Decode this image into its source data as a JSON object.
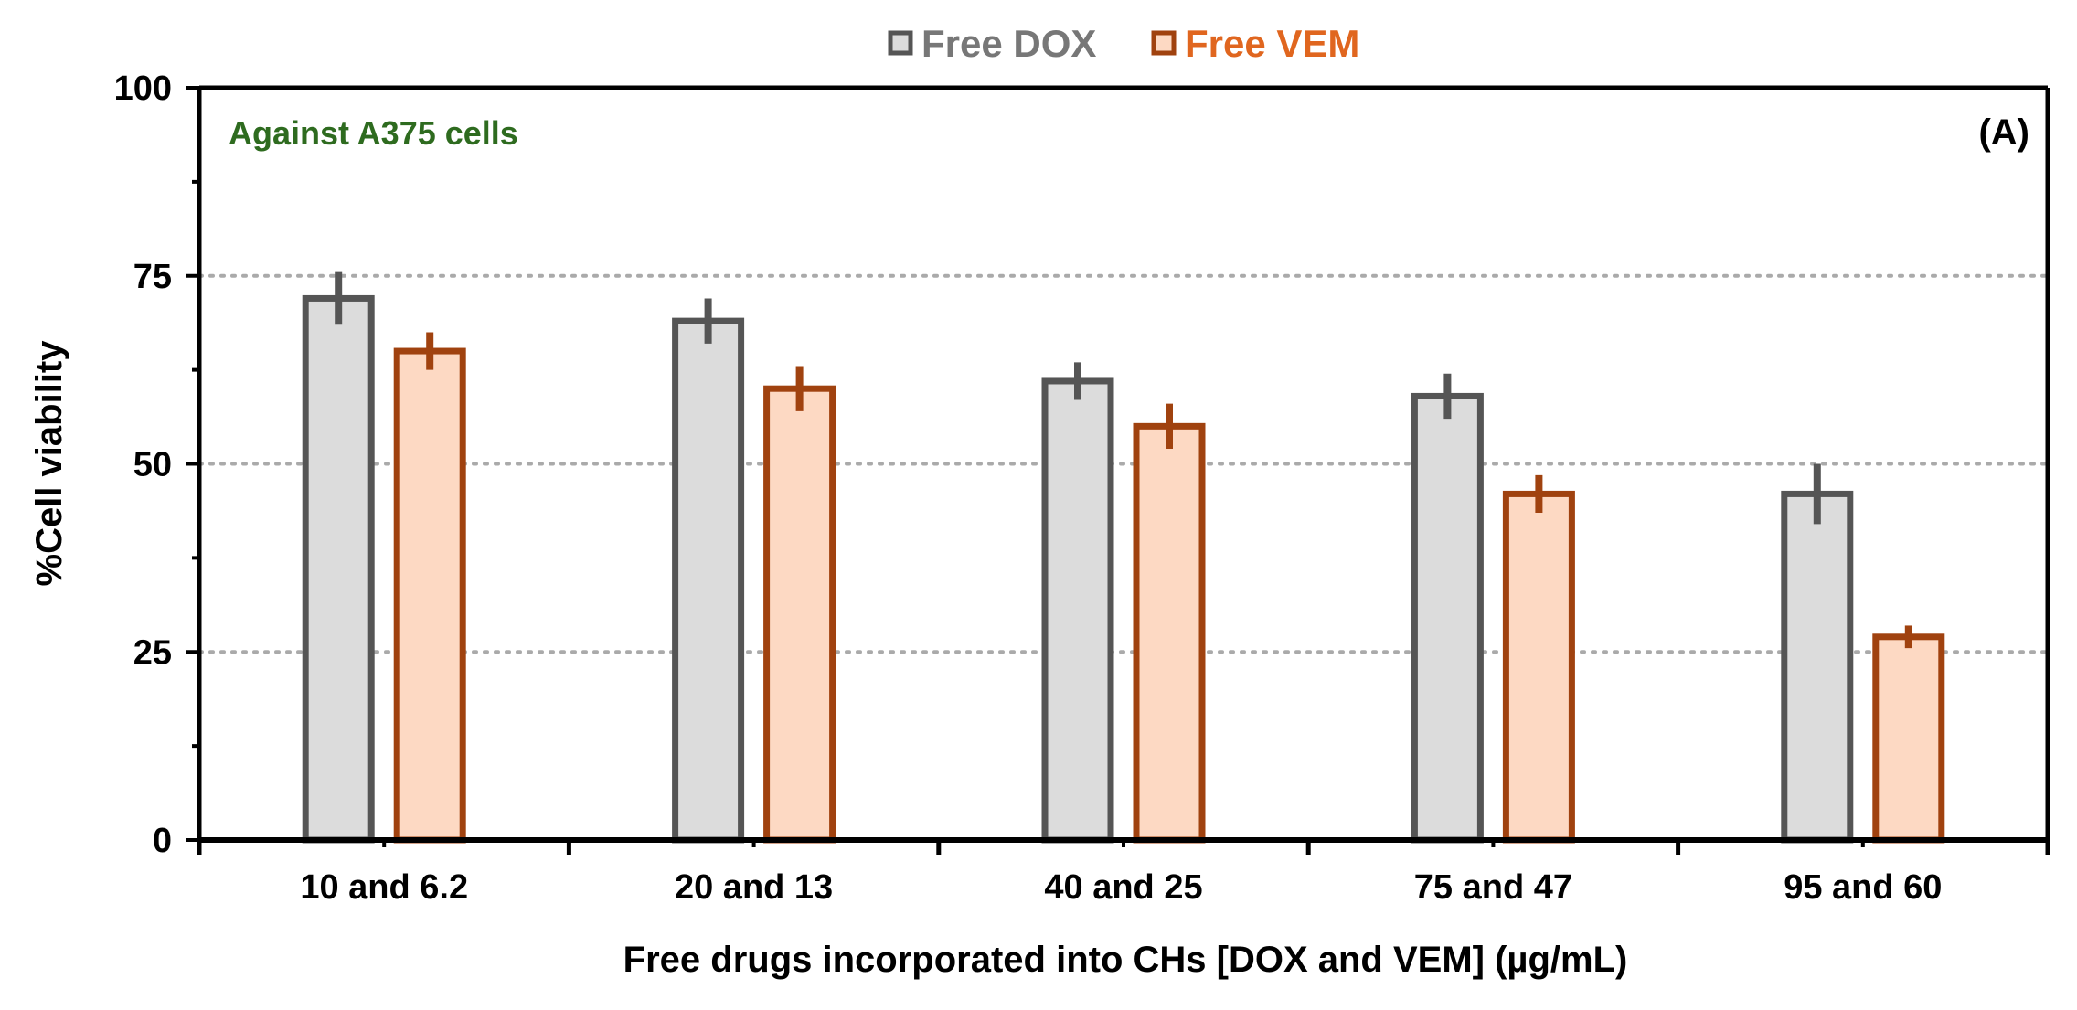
{
  "chart_data": {
    "type": "bar",
    "title": "",
    "panel_label": "(A)",
    "annotation": "Against A375 cells",
    "xlabel": "Free drugs incorporated into CHs [DOX and VEM] (µg/mL)",
    "ylabel": "%Cell viability",
    "ylim": [
      0,
      100
    ],
    "yticks": [
      0,
      25,
      50,
      75,
      100
    ],
    "grid": true,
    "legend_position": "top-center",
    "categories": [
      "10 and 6.2",
      "20 and 13",
      "40 and 25",
      "75 and 47",
      "95 and 60"
    ],
    "series": [
      {
        "name": "Free DOX",
        "values": [
          72,
          69,
          61,
          59,
          46
        ],
        "errors": [
          3.5,
          3,
          2.5,
          3,
          4
        ],
        "fill": "#dcdcdc",
        "stroke": "#555555",
        "legend_color": "#777777"
      },
      {
        "name": "Free VEM",
        "values": [
          65,
          60,
          55,
          46,
          27
        ],
        "errors": [
          2.5,
          3,
          3,
          2.5,
          1.5
        ],
        "fill": "#fdd9c3",
        "stroke": "#a0420f",
        "legend_color": "#e0661f"
      }
    ],
    "annotation_color": "#2e6b1f"
  }
}
